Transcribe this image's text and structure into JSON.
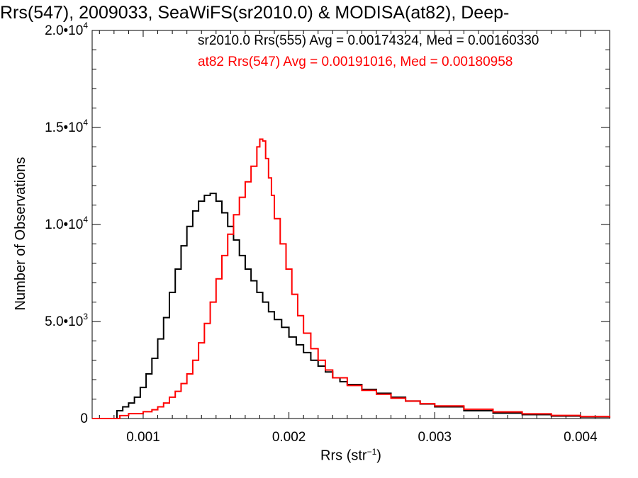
{
  "chart_data": {
    "type": "line",
    "title": "Rrs(547), 2009033, SeaWiFS(sr2010.0) & MODISA(at82), Deep-",
    "xlabel": "Rrs (str",
    "xlabel_sup": "−1",
    "xlabel_close": ")",
    "ylabel": "Number of Observations",
    "xlim": [
      0.00065,
      0.0042
    ],
    "ylim": [
      0,
      20000
    ],
    "x_ticks": [
      {
        "value": 0.001,
        "label": "0.001"
      },
      {
        "value": 0.002,
        "label": "0.002"
      },
      {
        "value": 0.003,
        "label": "0.003"
      },
      {
        "value": 0.004,
        "label": "0.004"
      }
    ],
    "y_ticks": [
      {
        "value": 0,
        "label": "0"
      },
      {
        "value": 5000,
        "label": "5.0•10",
        "sup": "3"
      },
      {
        "value": 10000,
        "label": "1.0•10",
        "sup": "4"
      },
      {
        "value": 15000,
        "label": "1.5•10",
        "sup": "4"
      },
      {
        "value": 20000,
        "label": "2.0•10",
        "sup": "4"
      }
    ],
    "legend_placement": "top",
    "series": [
      {
        "name": "sr2010.0 Rrs(555) Avg = 0.00174324, Med = 0.00160330",
        "color": "#000000",
        "step": true,
        "points": [
          [
            0.00065,
            0
          ],
          [
            0.0008,
            0
          ],
          [
            0.00082,
            400
          ],
          [
            0.00086,
            600
          ],
          [
            0.0009,
            800
          ],
          [
            0.00094,
            1100
          ],
          [
            0.00098,
            1600
          ],
          [
            0.00102,
            2300
          ],
          [
            0.00106,
            3100
          ],
          [
            0.0011,
            4100
          ],
          [
            0.00114,
            5200
          ],
          [
            0.00118,
            6500
          ],
          [
            0.00122,
            7700
          ],
          [
            0.00126,
            8900
          ],
          [
            0.0013,
            9900
          ],
          [
            0.00134,
            10700
          ],
          [
            0.00138,
            11200
          ],
          [
            0.00142,
            11500
          ],
          [
            0.00146,
            11600
          ],
          [
            0.0015,
            11200
          ],
          [
            0.00154,
            10600
          ],
          [
            0.00158,
            9900
          ],
          [
            0.00162,
            9200
          ],
          [
            0.00166,
            8400
          ],
          [
            0.0017,
            7700
          ],
          [
            0.00174,
            7100
          ],
          [
            0.00178,
            6500
          ],
          [
            0.00182,
            6000
          ],
          [
            0.00186,
            5500
          ],
          [
            0.0019,
            5100
          ],
          [
            0.00195,
            4700
          ],
          [
            0.002,
            4200
          ],
          [
            0.00205,
            3800
          ],
          [
            0.0021,
            3400
          ],
          [
            0.00215,
            3000
          ],
          [
            0.0022,
            2700
          ],
          [
            0.00225,
            2400
          ],
          [
            0.0023,
            2100
          ],
          [
            0.00235,
            1900
          ],
          [
            0.0024,
            1750
          ],
          [
            0.0025,
            1500
          ],
          [
            0.0026,
            1300
          ],
          [
            0.0027,
            1100
          ],
          [
            0.0028,
            900
          ],
          [
            0.0029,
            750
          ],
          [
            0.003,
            600
          ],
          [
            0.0032,
            400
          ],
          [
            0.0034,
            280
          ],
          [
            0.0036,
            200
          ],
          [
            0.0038,
            130
          ],
          [
            0.004,
            80
          ],
          [
            0.0042,
            40
          ]
        ]
      },
      {
        "name": "at82 Rrs(547) Avg = 0.00191016, Med = 0.00180958",
        "color": "#ff0000",
        "step": true,
        "points": [
          [
            0.00065,
            0
          ],
          [
            0.00082,
            0
          ],
          [
            0.00084,
            150
          ],
          [
            0.0009,
            250
          ],
          [
            0.001,
            350
          ],
          [
            0.00106,
            450
          ],
          [
            0.0011,
            600
          ],
          [
            0.00114,
            800
          ],
          [
            0.00118,
            1100
          ],
          [
            0.00122,
            1400
          ],
          [
            0.00126,
            1800
          ],
          [
            0.0013,
            2300
          ],
          [
            0.00134,
            3000
          ],
          [
            0.00138,
            3900
          ],
          [
            0.00142,
            4900
          ],
          [
            0.00146,
            6000
          ],
          [
            0.0015,
            7200
          ],
          [
            0.00154,
            8400
          ],
          [
            0.00158,
            9500
          ],
          [
            0.00162,
            10500
          ],
          [
            0.00166,
            11400
          ],
          [
            0.0017,
            12200
          ],
          [
            0.00174,
            13000
          ],
          [
            0.00178,
            14000
          ],
          [
            0.0018,
            14400
          ],
          [
            0.00182,
            14300
          ],
          [
            0.00184,
            13400
          ],
          [
            0.00186,
            12400
          ],
          [
            0.00188,
            11500
          ],
          [
            0.0019,
            10300
          ],
          [
            0.00194,
            9000
          ],
          [
            0.00198,
            7700
          ],
          [
            0.00202,
            6400
          ],
          [
            0.00206,
            5300
          ],
          [
            0.0021,
            4400
          ],
          [
            0.00215,
            3600
          ],
          [
            0.0022,
            3000
          ],
          [
            0.00225,
            2500
          ],
          [
            0.0023,
            2100
          ],
          [
            0.0024,
            1700
          ],
          [
            0.0025,
            1450
          ],
          [
            0.0026,
            1250
          ],
          [
            0.0027,
            1050
          ],
          [
            0.0028,
            900
          ],
          [
            0.0029,
            760
          ],
          [
            0.003,
            650
          ],
          [
            0.0032,
            480
          ],
          [
            0.0034,
            340
          ],
          [
            0.0036,
            240
          ],
          [
            0.0038,
            160
          ],
          [
            0.004,
            100
          ],
          [
            0.0042,
            50
          ]
        ]
      }
    ]
  }
}
